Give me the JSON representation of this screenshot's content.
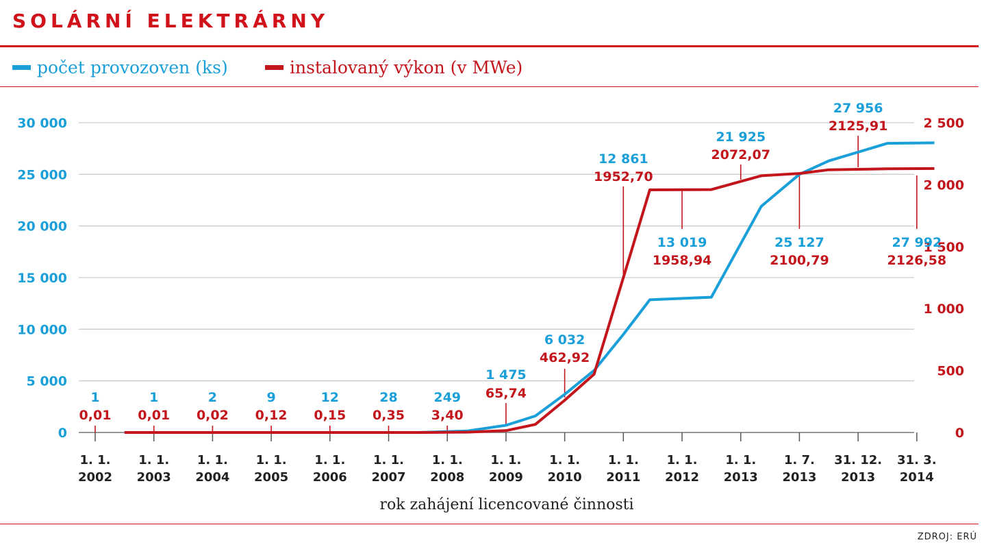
{
  "title": "SOLÁRNÍ ELEKTRÁRNY",
  "source": "ZDROJ: ERÚ",
  "colors": {
    "count": "#1a9fd9",
    "power": "#c3161c",
    "accent": "#d0121b",
    "grid": "#cccccc",
    "text": "#222222"
  },
  "chart_data": {
    "type": "line",
    "xlabel": "rok zahájení licencované činnosti",
    "legend_position": "top-left",
    "grid": true,
    "x_ticks": [
      [
        "1. 1.",
        "2002"
      ],
      [
        "1. 1.",
        "2003"
      ],
      [
        "1. 1.",
        "2004"
      ],
      [
        "1. 1.",
        "2005"
      ],
      [
        "1. 1.",
        "2006"
      ],
      [
        "1. 1.",
        "2007"
      ],
      [
        "1. 1.",
        "2008"
      ],
      [
        "1. 1.",
        "2009"
      ],
      [
        "1. 1.",
        "2010"
      ],
      [
        "1. 1.",
        "2011"
      ],
      [
        "1. 1.",
        "2012"
      ],
      [
        "1. 1.",
        "2013"
      ],
      [
        "1. 7.",
        "2013"
      ],
      [
        "31. 12.",
        "2013"
      ],
      [
        "31. 3.",
        "2014"
      ]
    ],
    "y_left": {
      "label": "",
      "range": [
        0,
        30000
      ],
      "ticks": [
        "0",
        "5 000",
        "10 000",
        "15 000",
        "20 000",
        "25 000",
        "30 000"
      ]
    },
    "y_right": {
      "label": "",
      "range": [
        0,
        2500
      ],
      "ticks": [
        "0",
        "500",
        "1 000",
        "1 500",
        "2 000",
        "2 500"
      ]
    },
    "series": [
      {
        "name": "počet provozoven (ks)",
        "axis": "left",
        "points": [
          [
            0.5,
            0
          ],
          [
            5.5,
            0
          ],
          [
            6.35,
            150
          ],
          [
            7.0,
            700
          ],
          [
            7.5,
            1600
          ],
          [
            8.0,
            3700
          ],
          [
            8.5,
            6000
          ],
          [
            9.0,
            9500
          ],
          [
            9.45,
            12850
          ],
          [
            10.5,
            13100
          ],
          [
            11.35,
            21900
          ],
          [
            12.0,
            25000
          ],
          [
            12.5,
            26300
          ],
          [
            13.5,
            28000
          ],
          [
            14.3,
            28050
          ]
        ],
        "annotations": [
          {
            "x": 0,
            "value": "1"
          },
          {
            "x": 1,
            "value": "1"
          },
          {
            "x": 2,
            "value": "2"
          },
          {
            "x": 3,
            "value": "9"
          },
          {
            "x": 4,
            "value": "12"
          },
          {
            "x": 5,
            "value": "28"
          },
          {
            "x": 6,
            "value": "249"
          },
          {
            "x": 7,
            "value": "1 475"
          },
          {
            "x": 8,
            "value": "6 032"
          },
          {
            "x": 9,
            "value": "12 861"
          },
          {
            "x": 10,
            "value": "13 019"
          },
          {
            "x": 11,
            "value": "21 925"
          },
          {
            "x": 12,
            "value": "25 127"
          },
          {
            "x": 13,
            "value": "27 956"
          },
          {
            "x": 14,
            "value": "27 992"
          }
        ]
      },
      {
        "name": "instalovaný výkon (v MWe)",
        "axis": "right",
        "points": [
          [
            0.5,
            0
          ],
          [
            5.5,
            0
          ],
          [
            6.35,
            3
          ],
          [
            7.0,
            15
          ],
          [
            7.5,
            65
          ],
          [
            8.0,
            260
          ],
          [
            8.5,
            470
          ],
          [
            9.0,
            1250
          ],
          [
            9.45,
            1958
          ],
          [
            10.5,
            1960
          ],
          [
            11.35,
            2072
          ],
          [
            12.0,
            2090
          ],
          [
            12.5,
            2120
          ],
          [
            13.5,
            2128
          ],
          [
            14.3,
            2130
          ]
        ],
        "annotations": [
          {
            "x": 0,
            "value": "0,01"
          },
          {
            "x": 1,
            "value": "0,01"
          },
          {
            "x": 2,
            "value": "0,02"
          },
          {
            "x": 3,
            "value": "0,12"
          },
          {
            "x": 4,
            "value": "0,15"
          },
          {
            "x": 5,
            "value": "0,35"
          },
          {
            "x": 6,
            "value": "3,40"
          },
          {
            "x": 7,
            "value": "65,74"
          },
          {
            "x": 8,
            "value": "462,92"
          },
          {
            "x": 9,
            "value": "1952,70"
          },
          {
            "x": 10,
            "value": "1958,94"
          },
          {
            "x": 11,
            "value": "2072,07"
          },
          {
            "x": 12,
            "value": "2100,79"
          },
          {
            "x": 13,
            "value": "2125,91"
          },
          {
            "x": 14,
            "value": "2126,58"
          }
        ]
      }
    ]
  }
}
